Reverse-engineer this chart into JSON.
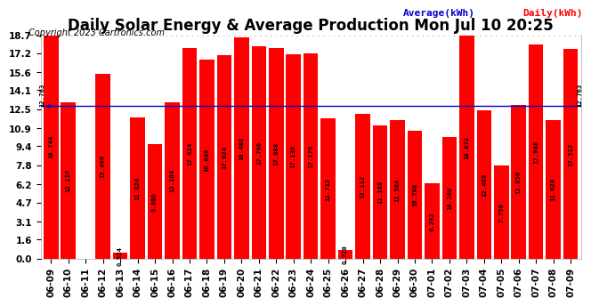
{
  "title": "Daily Solar Energy & Average Production Mon Jul 10 20:25",
  "copyright": "Copyright 2023 Cartronics.com",
  "legend_average": "Average(kWh)",
  "legend_daily": "Daily(kWh)",
  "average_value": 12.763,
  "categories": [
    "06-09",
    "06-10",
    "06-11",
    "06-12",
    "06-13",
    "06-14",
    "06-15",
    "06-16",
    "06-17",
    "06-18",
    "06-19",
    "06-20",
    "06-21",
    "06-22",
    "06-23",
    "06-24",
    "06-25",
    "06-26",
    "06-27",
    "06-28",
    "06-29",
    "06-30",
    "07-01",
    "07-02",
    "07-03",
    "07-04",
    "07-05",
    "07-06",
    "07-07",
    "07-08",
    "07-09"
  ],
  "values": [
    18.744,
    13.116,
    0.0,
    15.496,
    0.524,
    11.824,
    9.6,
    13.104,
    17.624,
    16.648,
    17.024,
    18.488,
    17.76,
    17.608,
    17.136,
    17.176,
    11.712,
    0.728,
    12.112,
    11.168,
    11.564,
    10.708,
    6.292,
    10.2,
    18.672,
    12.408,
    7.796,
    12.856,
    17.948,
    11.628,
    17.512
  ],
  "bar_color": "#ff0000",
  "average_line_color": "#0000cc",
  "bg_color": "#ffffff",
  "grid_color": "#cccccc",
  "ylim": [
    0,
    18.7
  ],
  "yticks": [
    0.0,
    1.6,
    3.1,
    4.7,
    6.2,
    7.8,
    9.4,
    10.9,
    12.5,
    14.1,
    15.6,
    17.2,
    18.7
  ],
  "title_fontsize": 12,
  "copyright_fontsize": 7,
  "bar_label_fontsize": 5.2,
  "tick_fontsize": 7.5,
  "legend_fontsize": 8,
  "avg_label_str": "12.763"
}
